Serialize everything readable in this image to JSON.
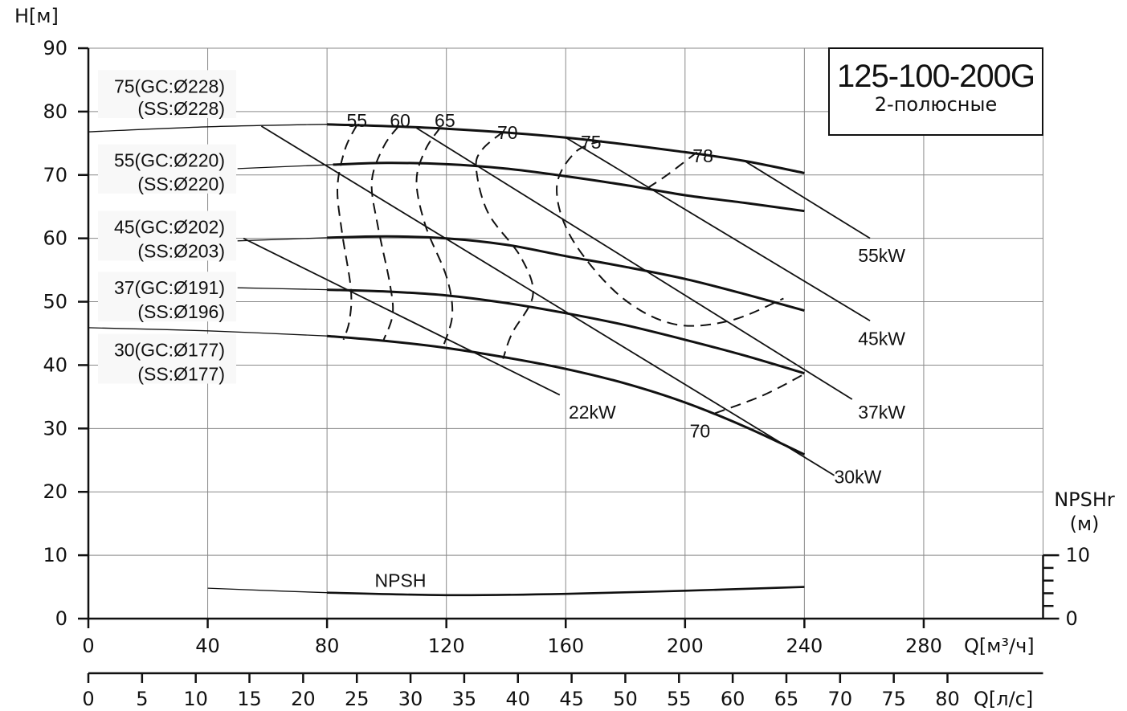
{
  "chart_data": {
    "type": "line",
    "title": "125-100-200G",
    "subtitle": "2-полюсные",
    "ylabel": "H[м]",
    "xlabel": "Q[м³/ч]",
    "xlabel2": "Q[л/с]",
    "ylabel2": [
      "NPSHr",
      "(м)"
    ],
    "ylim": [
      0,
      90
    ],
    "xlim": [
      0,
      320
    ],
    "xlim2": [
      0,
      88.9
    ],
    "y_ticks": [
      0,
      10,
      20,
      30,
      40,
      50,
      60,
      70,
      80,
      90
    ],
    "x_ticks": [
      0,
      40,
      80,
      120,
      160,
      200,
      240,
      280
    ],
    "x2_ticks": [
      0,
      5,
      10,
      15,
      20,
      25,
      30,
      35,
      40,
      45,
      50,
      55,
      60,
      65,
      70,
      75,
      80
    ],
    "npsh_ticks": [
      0,
      10
    ],
    "grid": true,
    "impeller_curves": [
      {
        "label": "75(GC:Ø228)",
        "label2": "(SS:Ø228)",
        "label_y": [
          84,
          80.5
        ],
        "leader_end_y": 76.8,
        "x": [
          0,
          40,
          80,
          120,
          160,
          200,
          220,
          240
        ],
        "y": [
          76.8,
          77.6,
          78,
          77.3,
          75.9,
          73.6,
          72.2,
          70.3
        ],
        "op_start_x": 80
      },
      {
        "label": "55(GC:Ø220)",
        "label2": "(SS:Ø220)",
        "label_y": [
          72.3,
          68.6
        ],
        "leader_end_y": 70,
        "x": [
          50,
          80,
          100,
          120,
          140,
          160,
          180,
          200,
          220,
          240
        ],
        "y": [
          71,
          71.6,
          71.9,
          71.7,
          71,
          69.8,
          68.4,
          66.8,
          65.6,
          64.3
        ],
        "op_start_x": 82
      },
      {
        "label": "45(GC:Ø202)",
        "label2": "(SS:Ø203)",
        "label_y": [
          61.8,
          58
        ],
        "leader_end_y": 59,
        "x": [
          50,
          80,
          100,
          120,
          140,
          160,
          180,
          200,
          220,
          240
        ],
        "y": [
          59.6,
          60.1,
          60.3,
          60,
          59,
          57.2,
          55.5,
          53.6,
          51.2,
          48.6
        ],
        "op_start_x": 80
      },
      {
        "label": "37(GC:Ø191)",
        "label2": "(SS:Ø196)",
        "label_y": [
          52.2,
          48.4
        ],
        "leader_end_y": 52.3,
        "x": [
          50,
          80,
          100,
          120,
          140,
          160,
          180,
          200,
          220,
          240
        ],
        "y": [
          52.2,
          51.9,
          51.6,
          51,
          49.8,
          48.2,
          46.3,
          44,
          41.5,
          38.7
        ],
        "op_start_x": 80
      },
      {
        "label": "30(GC:Ø177)",
        "label2": "(SS:Ø177)",
        "label_y": [
          42.4,
          38.6
        ],
        "leader_end_y": 45.9,
        "x": [
          0,
          40,
          80,
          100,
          120,
          140,
          160,
          180,
          200,
          220,
          240
        ],
        "y": [
          45.9,
          45.4,
          44.6,
          43.8,
          42.7,
          41.2,
          39.4,
          37.1,
          34.1,
          30.3,
          25.9
        ],
        "op_start_x": 80
      }
    ],
    "power_lines": [
      {
        "label": "55kW",
        "from": [
          220,
          72.2
        ],
        "to": [
          262,
          60
        ],
        "label_pos": [
          258,
          57.3
        ]
      },
      {
        "label": "45kW",
        "from": [
          160,
          75.9
        ],
        "to": [
          262,
          47
        ],
        "label_pos": [
          258,
          44.2
        ]
      },
      {
        "label": "37kW",
        "from": [
          110,
          77.4
        ],
        "to": [
          256,
          34.6
        ],
        "label_pos": [
          258,
          32.6
        ]
      },
      {
        "label": "30kW",
        "from": [
          58,
          77.7
        ],
        "to": [
          250,
          22.6
        ],
        "label_pos": [
          250,
          22.4
        ]
      },
      {
        "label": "22kW",
        "from": [
          52,
          60
        ],
        "to": [
          158,
          35.3
        ],
        "label_pos": [
          161,
          32.6
        ]
      }
    ],
    "efficiency_contours": [
      {
        "label": "55",
        "label_pos": [
          90,
          78.6
        ],
        "x": [
          90,
          86,
          83.5,
          85,
          88,
          87.5,
          85.5
        ],
        "y": [
          77.9,
          74,
          68,
          61,
          52,
          47,
          44
        ]
      },
      {
        "label": "60",
        "label_pos": [
          104.5,
          78.6
        ],
        "x": [
          104,
          99,
          95,
          97,
          101,
          102,
          99
        ],
        "y": [
          77.7,
          74.5,
          69,
          62,
          53,
          48,
          44
        ]
      },
      {
        "label": "65",
        "label_pos": [
          119.5,
          78.6
        ],
        "x": [
          118,
          113,
          110,
          113,
          120,
          122,
          119
        ],
        "y": [
          77.5,
          74,
          69,
          62,
          54,
          48,
          43
        ]
      },
      {
        "label": "70",
        "label_pos": [
          140.5,
          76.7
        ],
        "x": [
          139,
          132,
          130,
          134,
          145,
          149,
          142,
          139
        ],
        "y": [
          76.8,
          74,
          71,
          64,
          57,
          51,
          45,
          41
        ]
      },
      {
        "label": "75",
        "label_pos": [
          168.5,
          75.2
        ],
        "x": [
          172,
          163,
          157,
          162,
          178,
          196,
          215,
          233
        ],
        "y": [
          75.4,
          73.5,
          68,
          60,
          51,
          46.5,
          47,
          50.5
        ]
      },
      {
        "label": "78",
        "label_pos": [
          206,
          73
        ],
        "x": [
          204,
          194,
          187
        ],
        "y": [
          73.6,
          70,
          67.8
        ]
      },
      {
        "label": "70",
        "label_pos": [
          205,
          29.6
        ],
        "x": [
          210,
          226,
          240
        ],
        "y": [
          32.4,
          35.2,
          38.6
        ]
      }
    ],
    "npsh": {
      "label": "NPSH",
      "label_pos": [
        96,
        6
      ],
      "x": [
        40,
        80,
        120,
        160,
        200,
        240
      ],
      "y": [
        4.8,
        4.1,
        3.7,
        3.9,
        4.4,
        5
      ]
    }
  }
}
